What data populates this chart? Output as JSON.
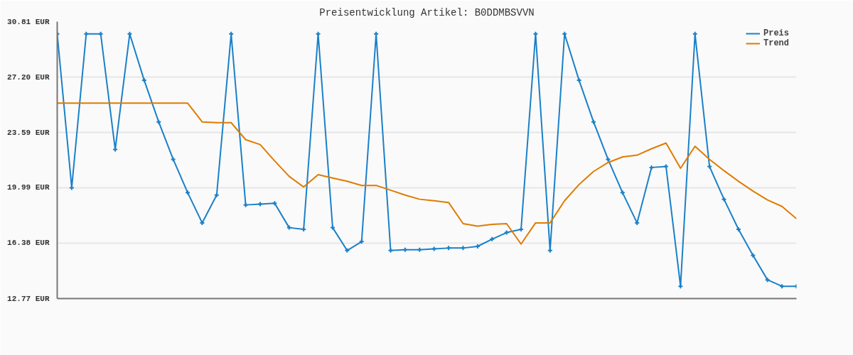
{
  "chart_data": {
    "type": "line",
    "title": "Preisentwicklung Artikel: B0DDMBSVVN",
    "categories": [
      null,
      null,
      null,
      null,
      null,
      null,
      null,
      null,
      null,
      null,
      null,
      null,
      null,
      null,
      null,
      null,
      null,
      null,
      null,
      null,
      null,
      null,
      null,
      null,
      null,
      null,
      null,
      null,
      null,
      null,
      null,
      null,
      null,
      null,
      null,
      null,
      null,
      null,
      null,
      null,
      null,
      null,
      null,
      null,
      null,
      null,
      null,
      null,
      null,
      null,
      null,
      null
    ],
    "series": [
      {
        "name": "Preis",
        "color": "#1a80c8",
        "marker": "cross",
        "values": [
          30.01,
          19.99,
          30.01,
          30.01,
          22.48,
          30.01,
          26.99,
          24.28,
          21.84,
          19.67,
          17.7,
          19.51,
          30.01,
          18.87,
          18.92,
          18.98,
          17.39,
          17.28,
          30.01,
          17.39,
          15.9,
          16.48,
          30.01,
          15.9,
          15.95,
          15.95,
          16.01,
          16.06,
          16.06,
          16.17,
          16.64,
          17.07,
          17.28,
          30.01,
          15.9,
          30.01,
          26.99,
          24.28,
          21.84,
          19.67,
          17.7,
          21.31,
          21.37,
          13.57,
          30.01,
          21.37,
          19.24,
          17.28,
          15.58,
          13.99,
          13.57,
          13.57
        ]
      },
      {
        "name": "Trend",
        "color": "#e07b00",
        "marker": "none",
        "values": [
          25.5,
          25.5,
          25.5,
          25.5,
          25.5,
          25.5,
          25.5,
          25.5,
          25.5,
          25.5,
          24.28,
          24.23,
          24.23,
          23.12,
          22.8,
          21.74,
          20.73,
          20.04,
          20.84,
          20.62,
          20.41,
          20.14,
          20.14,
          19.83,
          19.51,
          19.24,
          19.14,
          19.03,
          17.65,
          17.49,
          17.6,
          17.65,
          16.32,
          17.7,
          17.7,
          19.14,
          20.2,
          21.05,
          21.63,
          22.0,
          22.11,
          22.53,
          22.9,
          21.26,
          22.69,
          21.84,
          21.1,
          20.41,
          19.77,
          19.19,
          18.77,
          17.97
        ]
      }
    ],
    "ylim": [
      12.77,
      30.81
    ],
    "yticks": [
      {
        "value": 12.77,
        "label": "12.77 EUR"
      },
      {
        "value": 16.38,
        "label": "16.38 EUR"
      },
      {
        "value": 19.99,
        "label": "19.99 EUR"
      },
      {
        "value": 23.59,
        "label": "23.59 EUR"
      },
      {
        "value": 27.2,
        "label": "27.20 EUR"
      },
      {
        "value": 30.81,
        "label": "30.81 EUR"
      }
    ],
    "grid": "y",
    "legend": "top right"
  }
}
